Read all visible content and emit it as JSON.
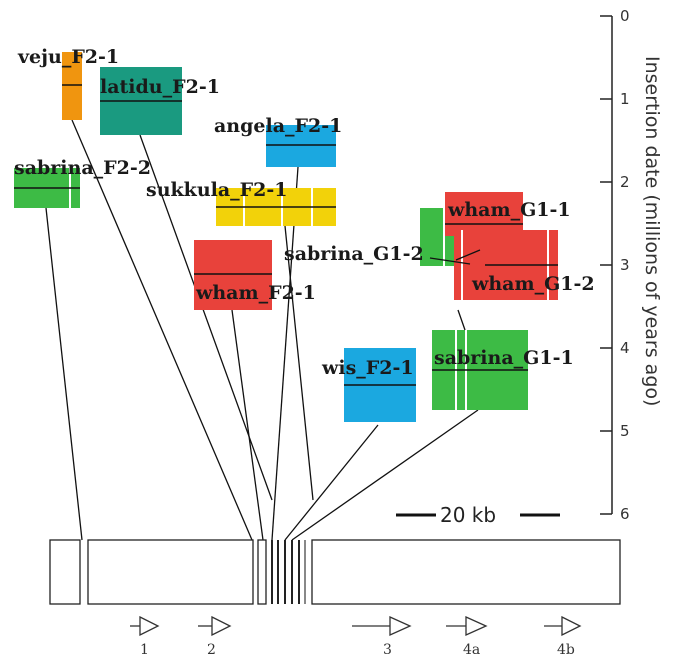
{
  "axis": {
    "title": "Insertion date (millions of years ago)",
    "ticks": [
      "0",
      "1",
      "2",
      "3",
      "4",
      "5",
      "6"
    ]
  },
  "scale_bar": {
    "label": "20 kb"
  },
  "elements": [
    {
      "name": "veju_F2-1",
      "color": "#f0950f"
    },
    {
      "name": "latidu_F2-1",
      "color": "#1a9a80"
    },
    {
      "name": "angela_F2-1",
      "color": "#1ba8e0"
    },
    {
      "name": "sabrina_F2-2",
      "color": "#3dbb45"
    },
    {
      "name": "sukkula_F2-1",
      "color": "#f2d20a"
    },
    {
      "name": "sabrina_G1-2",
      "color": "#3dbb45"
    },
    {
      "name": "wham_G1-1",
      "color": "#e8423b"
    },
    {
      "name": "wham_G1-2",
      "color": "#e8423b"
    },
    {
      "name": "wham_F2-1",
      "color": "#e8423b"
    },
    {
      "name": "wis_F2-1",
      "color": "#1ba8e0"
    },
    {
      "name": "sabrina_G1-1",
      "color": "#3dbb45"
    }
  ],
  "genes": [
    "1",
    "2",
    "3",
    "4a",
    "4b"
  ]
}
